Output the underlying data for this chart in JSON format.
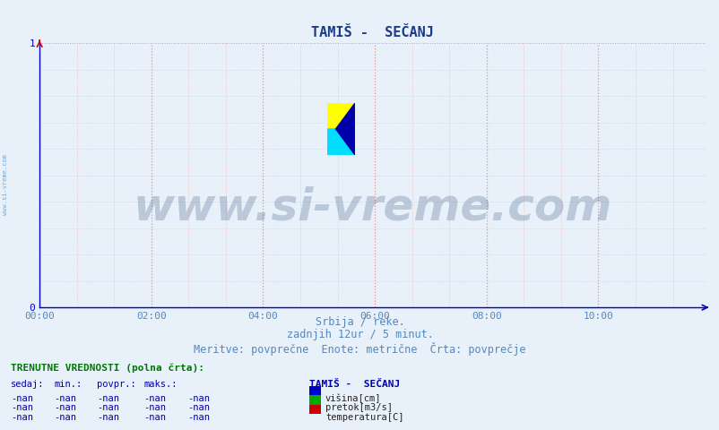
{
  "title": "TAMIŠ -  SEČANJ",
  "title_color": "#1a3a8a",
  "background_color": "#e8f0fa",
  "plot_bg_color": "#e8f0fa",
  "axis_color": "#0000cc",
  "grid_color_red": "#ff8888",
  "grid_color_gray": "#aaaacc",
  "xlim": [
    0,
    143
  ],
  "ylim": [
    0,
    1
  ],
  "yticks": [
    0,
    1
  ],
  "xtick_labels": [
    "00:00",
    "02:00",
    "04:00",
    "06:00",
    "08:00",
    "10:00"
  ],
  "xtick_positions": [
    0,
    24,
    48,
    72,
    96,
    120
  ],
  "xlabel_color": "#5588bb",
  "tick_color": "#0000cc",
  "watermark_text": "www.si-vreme.com",
  "watermark_color": "#1a3a6a",
  "watermark_fontsize": 36,
  "side_text": "www.si-vreme.com",
  "side_text_color": "#5599cc",
  "subtitle_lines": [
    "Srbija / reke.",
    "zadnjih 12ur / 5 minut.",
    "Meritve: povprečne  Enote: metrične  Črta: povprečje"
  ],
  "subtitle_color": "#5588bb",
  "subtitle_fontsize": 8.5,
  "table_header": "TRENUTNE VREDNOSTI (polna črta):",
  "table_header_color": "#007700",
  "table_cols": [
    "sedaj:",
    "min.:",
    "povpr.:",
    "maks.:"
  ],
  "table_col_color": "#0000aa",
  "table_values": [
    "-nan",
    "-nan",
    "-nan",
    "-nan"
  ],
  "legend_title": "TAMIŠ -  SEČANJ",
  "legend_items": [
    {
      "label": "višina[cm]",
      "color": "#0000cc"
    },
    {
      "label": "pretok[m3/s]",
      "color": "#00aa00"
    },
    {
      "label": "temperatura[C]",
      "color": "#cc0000"
    }
  ],
  "legend_title_color": "#0000aa",
  "logo_colors": [
    "#ffff00",
    "#00ddff",
    "#0000aa"
  ]
}
